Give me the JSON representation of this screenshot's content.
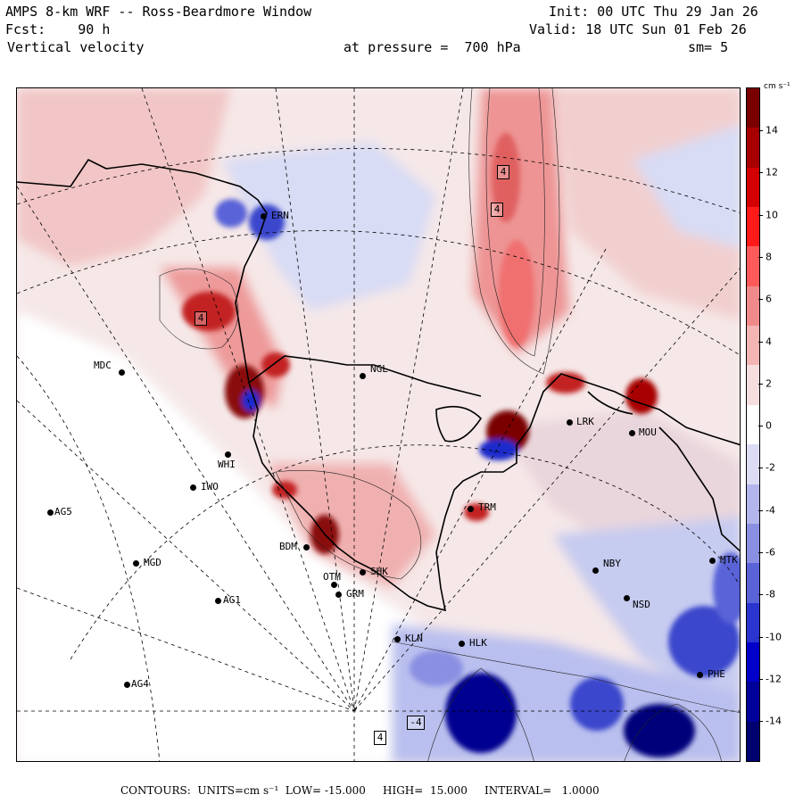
{
  "header": {
    "title": "AMPS 8-km WRF -- Ross-Beardmore Window",
    "forecast": "Fcst:    90 h",
    "variable": "Vertical velocity",
    "init": "Init: 00 UTC Thu 29 Jan 26",
    "valid": "Valid: 18 UTC Sun 01 Feb 26",
    "pressure_label": "at pressure =  700 hPa",
    "smoothing": "sm= 5"
  },
  "colorbar": {
    "units": "cm s⁻¹",
    "labels": [
      "14",
      "12",
      "10",
      "8",
      "6",
      "4",
      "2",
      "0",
      "-2",
      "-4",
      "-6",
      "-8",
      "-10",
      "-12",
      "-14"
    ],
    "colors": [
      "#7a0000",
      "#a80000",
      "#d40000",
      "#ff1a1a",
      "#ff5a5a",
      "#f08a8a",
      "#f3b4b4",
      "#f7dede",
      "#ffffff",
      "#dcdcf5",
      "#b3b6ec",
      "#8a8fe2",
      "#5a63d8",
      "#2a35d0",
      "#0000c8",
      "#00009a",
      "#000070"
    ]
  },
  "stations": [
    {
      "name": "MDC"
    },
    {
      "name": "NGL"
    },
    {
      "name": "WHI"
    },
    {
      "name": "IWO"
    },
    {
      "name": "AG5"
    },
    {
      "name": "MGD"
    },
    {
      "name": "AG1"
    },
    {
      "name": "AG4"
    },
    {
      "name": "BDM"
    },
    {
      "name": "OTM"
    },
    {
      "name": "GRM"
    },
    {
      "name": "SHK"
    },
    {
      "name": "KLN"
    },
    {
      "name": "HLK"
    },
    {
      "name": "NBY"
    },
    {
      "name": "NSD"
    },
    {
      "name": "MTK"
    },
    {
      "name": "PHE"
    },
    {
      "name": "TRM"
    },
    {
      "name": "MOU"
    },
    {
      "name": "LRK"
    },
    {
      "name": "ERN"
    }
  ],
  "contour_labels": [
    "4",
    "4",
    "4",
    "4",
    "-4"
  ],
  "footer": {
    "contours": "CONTOURS:  UNITS=cm s⁻¹  LOW= -15.000     HIGH=  15.000     INTERVAL=   1.0000"
  }
}
